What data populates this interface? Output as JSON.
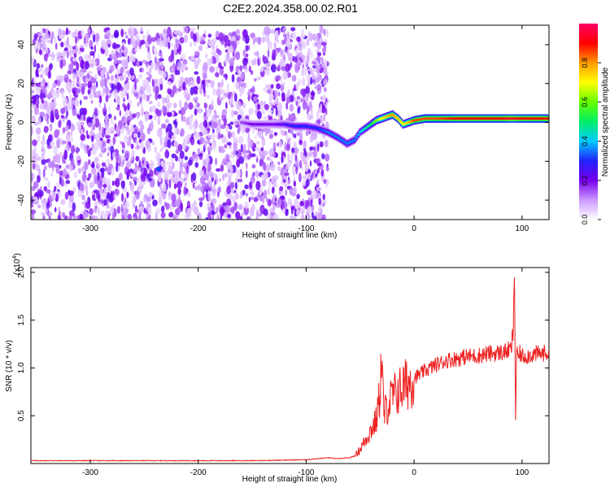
{
  "title": "C2E2.2024.358.00.02.R01",
  "chart_data": [
    {
      "type": "heatmap",
      "xlabel": "Height of straight line (km)",
      "ylabel": "Frequency (Hz)",
      "xlim": [
        -355,
        125
      ],
      "ylim": [
        -50,
        50
      ],
      "xticks": [
        -300,
        -200,
        -100,
        0,
        100
      ],
      "yticks": [
        -40,
        -20,
        0,
        20,
        40
      ],
      "colorbar": {
        "label": "Normalized spectral amplitude",
        "range": [
          0.0,
          1.0
        ],
        "ticks": [
          0.0,
          0.2,
          0.4,
          0.6,
          0.8
        ],
        "colors": [
          "#ffffff",
          "#cc99ff",
          "#7700ee",
          "#2222ff",
          "#00ccff",
          "#00ee66",
          "#66ff00",
          "#ffff00",
          "#ff9900",
          "#ff0000",
          "#ff0066"
        ]
      },
      "noise_region": {
        "x": [
          -355,
          -80
        ],
        "y": [
          -50,
          48
        ]
      },
      "signal_trace": {
        "x": [
          -160,
          -150,
          -140,
          -130,
          -120,
          -110,
          -100,
          -90,
          -80,
          -70,
          -62,
          -55,
          -50,
          -45,
          -40,
          -35,
          -30,
          -25,
          -20,
          -15,
          -10,
          -5,
          0,
          10,
          20,
          40,
          60,
          80,
          90,
          100,
          125
        ],
        "frequency": [
          0,
          -1,
          -1,
          -1,
          -1,
          -2,
          -2,
          -3,
          -5,
          -8,
          -11,
          -9,
          -5,
          -3,
          -1,
          1,
          2,
          3,
          4,
          2,
          -1,
          0,
          1,
          2,
          2,
          2,
          2,
          2,
          2,
          2,
          2
        ],
        "amplitude": [
          0.15,
          0.2,
          0.2,
          0.2,
          0.25,
          0.3,
          0.3,
          0.3,
          0.35,
          0.35,
          0.35,
          0.35,
          0.4,
          0.45,
          0.5,
          0.6,
          0.7,
          0.75,
          0.8,
          0.75,
          0.7,
          0.75,
          0.85,
          0.85,
          0.85,
          0.9,
          0.9,
          0.9,
          0.95,
          0.9,
          0.9
        ]
      }
    },
    {
      "type": "line",
      "xlabel": "Height of straight line (km)",
      "ylabel": "SNR (10 * v/v)",
      "y_multiplier": "(x10",
      "y_multiplier_exp": "4",
      "y_multiplier_close": ")",
      "xlim": [
        -355,
        125
      ],
      "ylim": [
        0,
        20500
      ],
      "xticks": [
        -300,
        -200,
        -100,
        0,
        100
      ],
      "yticks": [
        5000,
        10000,
        15000,
        20000
      ],
      "ytick_labels": [
        "0.5",
        "1.0",
        "1.5",
        "2.0"
      ],
      "color": "#ee2222",
      "series": [
        {
          "x": [
            -355,
            -300,
            -250,
            -200,
            -150,
            -100,
            -80,
            -70,
            -60,
            -55,
            -50,
            -45,
            -40,
            -35,
            -32,
            -30,
            -28,
            -25,
            -20,
            -15,
            -10,
            -5,
            0,
            5,
            10,
            20,
            30,
            40,
            50,
            60,
            70,
            80,
            85,
            90,
            92,
            93,
            94,
            95,
            96,
            98,
            100,
            110,
            125
          ],
          "y": [
            300,
            300,
            300,
            300,
            300,
            400,
            600,
            500,
            600,
            800,
            1500,
            2500,
            3500,
            4500,
            7000,
            11000,
            5000,
            6000,
            7000,
            7500,
            8000,
            8500,
            9000,
            9300,
            9700,
            10300,
            10800,
            11000,
            11200,
            11300,
            11500,
            11600,
            11700,
            12000,
            14000,
            20500,
            4500,
            12000,
            11000,
            11500,
            11200,
            11400,
            11600
          ]
        }
      ]
    }
  ]
}
